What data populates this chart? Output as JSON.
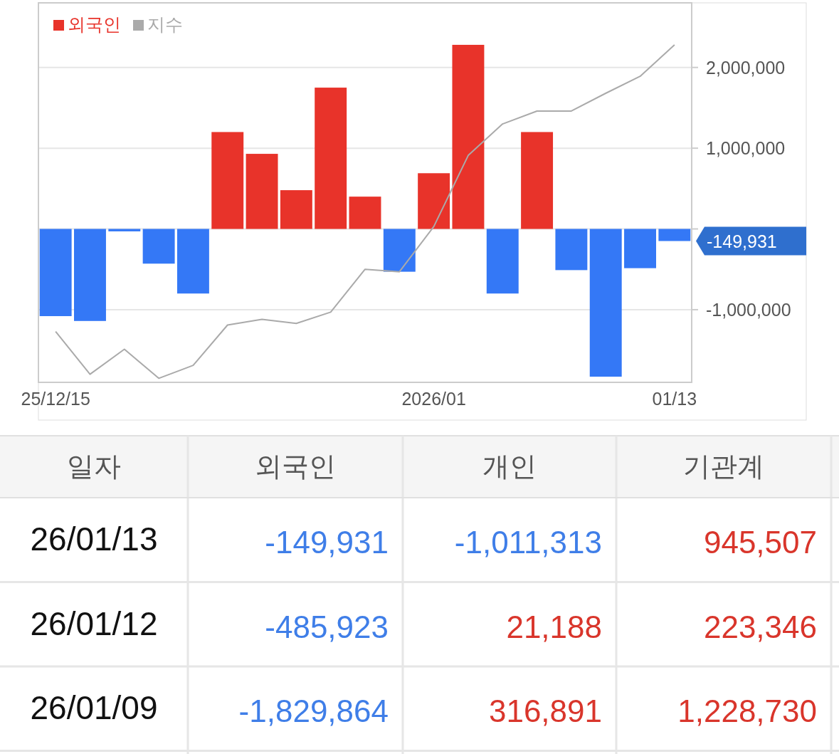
{
  "chart_data": [
    {
      "type": "bar",
      "categories": [
        "25/12/15",
        null,
        null,
        null,
        null,
        null,
        null,
        null,
        null,
        null,
        null,
        "2026/01",
        null,
        null,
        null,
        null,
        null,
        null,
        "01/13"
      ],
      "series": [
        {
          "name": "외국인",
          "type": "bar",
          "colors": [
            "#3478f6",
            "#3478f6",
            "#3478f6",
            "#3478f6",
            "#3478f6",
            "#e8332a",
            "#e8332a",
            "#e8332a",
            "#e8332a",
            "#e8332a",
            "#3478f6",
            "#e8332a",
            "#e8332a",
            "#3478f6",
            "#e8332a",
            "#3478f6",
            "#3478f6",
            "#3478f6",
            "#3478f6"
          ],
          "values": [
            -1080000,
            -1140000,
            -30000,
            -430000,
            -800000,
            1200000,
            930000,
            480000,
            1750000,
            400000,
            -530000,
            690000,
            2280000,
            -800000,
            1200000,
            -510000,
            -1829864,
            -485923,
            -149931
          ]
        },
        {
          "name": "지수",
          "type": "line",
          "color": "#aaaaaa",
          "values": [
            -1270000,
            -1800000,
            -1490000,
            -1850000,
            -1690000,
            -1190000,
            -1120000,
            -1170000,
            -1030000,
            -500000,
            -530000,
            30000,
            910000,
            1300000,
            1460000,
            1460000,
            1680000,
            1890000,
            2280000
          ]
        }
      ],
      "ylim": [
        -1900000,
        2800000
      ],
      "yticks": [
        {
          "value": -1000000,
          "label": "-1,000,000"
        },
        {
          "value": 0,
          "label": null
        },
        {
          "value": 1000000,
          "label": "1,000,000"
        },
        {
          "value": 2000000,
          "label": "2,000,000"
        }
      ],
      "grid": "y",
      "legend": "top left",
      "annotations": [
        {
          "text": "-149,931",
          "x": "01/13",
          "y": -149931
        }
      ]
    },
    {
      "type": "other",
      "categories": [
        "일자",
        "외국인",
        "개인",
        "기관계"
      ],
      "y_categories": [
        "26/01/13",
        "26/01/12",
        "26/01/09"
      ],
      "cell_labels": [
        [
          "-149,931",
          "-1,011,313",
          "945,507"
        ],
        [
          "-485,923",
          "21,188",
          "223,346"
        ],
        [
          "-1,829,864",
          "316,891",
          "1,228,730"
        ]
      ],
      "colors": [
        [
          "#3f7ee8",
          "#3f7ee8",
          "#d9352b"
        ],
        [
          "#3f7ee8",
          "#d9352b",
          "#d9352b"
        ],
        [
          "#3f7ee8",
          "#d9352b",
          "#d9352b"
        ]
      ]
    }
  ]
}
